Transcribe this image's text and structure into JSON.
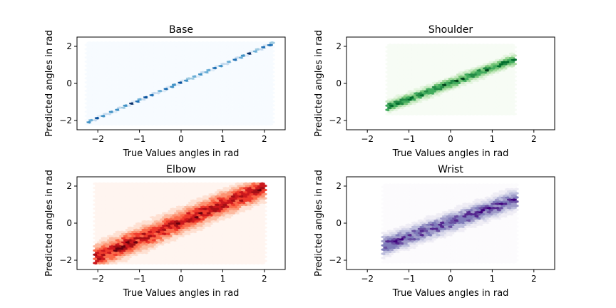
{
  "chart_data": [
    {
      "type": "heatmap",
      "subtype": "hexbin",
      "title": "Base",
      "xlabel": "True Values angles in rad",
      "ylabel": "Predicted angles in rad",
      "xlim": [
        -2.5,
        2.5
      ],
      "ylim": [
        -2.5,
        2.5
      ],
      "xticks": [
        -2,
        -1,
        0,
        1,
        2
      ],
      "yticks": [
        -2,
        0,
        2
      ],
      "xtick_labels": [
        "−2",
        "−1",
        "0",
        "1",
        "2"
      ],
      "ytick_labels": [
        "−2",
        "0",
        "2"
      ],
      "colormap": "Blues",
      "extent": {
        "x": [
          -2.25,
          2.2
        ],
        "y": [
          -2.2,
          2.2
        ]
      },
      "trend": {
        "x": [
          -2.25,
          2.2
        ],
        "y": [
          -2.1,
          2.15
        ]
      },
      "spread": 0.05,
      "grid": false
    },
    {
      "type": "heatmap",
      "subtype": "hexbin",
      "title": "Shoulder",
      "xlabel": "True Values angles in rad",
      "ylabel": "Predicted angles in rad",
      "xlim": [
        -2.5,
        2.5
      ],
      "ylim": [
        -2.5,
        2.5
      ],
      "xticks": [
        -2,
        -1,
        0,
        1,
        2
      ],
      "yticks": [
        -2,
        0,
        2
      ],
      "xtick_labels": [
        "−2",
        "−1",
        "0",
        "1",
        "2"
      ],
      "ytick_labels": [
        "−2",
        "0",
        "2"
      ],
      "colormap": "Greens",
      "extent": {
        "x": [
          -1.5,
          1.55
        ],
        "y": [
          -1.65,
          2.1
        ]
      },
      "trend": {
        "x": [
          -1.5,
          1.55
        ],
        "y": [
          -1.25,
          1.3
        ]
      },
      "spread": 0.25,
      "grid": false
    },
    {
      "type": "heatmap",
      "subtype": "hexbin",
      "title": "Elbow",
      "xlabel": "True Values angles in rad",
      "ylabel": "Predicted angles in rad",
      "xlim": [
        -2.5,
        2.5
      ],
      "ylim": [
        -2.5,
        2.5
      ],
      "xticks": [
        -2,
        -1,
        0,
        1,
        2
      ],
      "yticks": [
        -2,
        0,
        2
      ],
      "xtick_labels": [
        "−2",
        "−1",
        "0",
        "1",
        "2"
      ],
      "ytick_labels": [
        "−2",
        "0",
        "2"
      ],
      "colormap": "Reds",
      "extent": {
        "x": [
          -2.05,
          2.0
        ],
        "y": [
          -2.15,
          2.1
        ]
      },
      "trend": {
        "x": [
          -2.0,
          1.95
        ],
        "y": [
          -1.8,
          1.9
        ]
      },
      "spread": 0.55,
      "grid": false
    },
    {
      "type": "heatmap",
      "subtype": "hexbin",
      "title": "Wrist",
      "xlabel": "True Values angles in rad",
      "ylabel": "Predicted angles in rad",
      "xlim": [
        -2.5,
        2.5
      ],
      "ylim": [
        -2.5,
        2.5
      ],
      "xticks": [
        -2,
        -1,
        0,
        1,
        2
      ],
      "yticks": [
        -2,
        0,
        2
      ],
      "xtick_labels": [
        "−2",
        "−1",
        "0",
        "1",
        "2"
      ],
      "ytick_labels": [
        "−2",
        "0",
        "2"
      ],
      "colormap": "Purples",
      "extent": {
        "x": [
          -1.6,
          1.6
        ],
        "y": [
          -2.1,
          2.1
        ]
      },
      "trend": {
        "x": [
          -1.6,
          1.6
        ],
        "y": [
          -1.2,
          1.3
        ]
      },
      "spread": 0.45,
      "grid": false
    }
  ],
  "colors": {
    "Blues": [
      "#f7fbff",
      "#deebf7",
      "#c6dbef",
      "#9ecae1",
      "#6baed6",
      "#4292c6",
      "#2171b5",
      "#08519c",
      "#08306b"
    ],
    "Greens": [
      "#f7fcf5",
      "#e5f5e0",
      "#c7e9c0",
      "#a1d99b",
      "#74c476",
      "#41ab5d",
      "#238b45",
      "#006d2c",
      "#00441b"
    ],
    "Reds": [
      "#fff5f0",
      "#fee0d2",
      "#fcbba1",
      "#fc9272",
      "#fb6a4a",
      "#ef3b2c",
      "#cb181d",
      "#a50f15",
      "#67000d"
    ],
    "Purples": [
      "#fcfbfd",
      "#efedf5",
      "#dadaeb",
      "#bcbddc",
      "#9e9ac8",
      "#807dba",
      "#6a51a3",
      "#54278f",
      "#3f007d"
    ]
  }
}
